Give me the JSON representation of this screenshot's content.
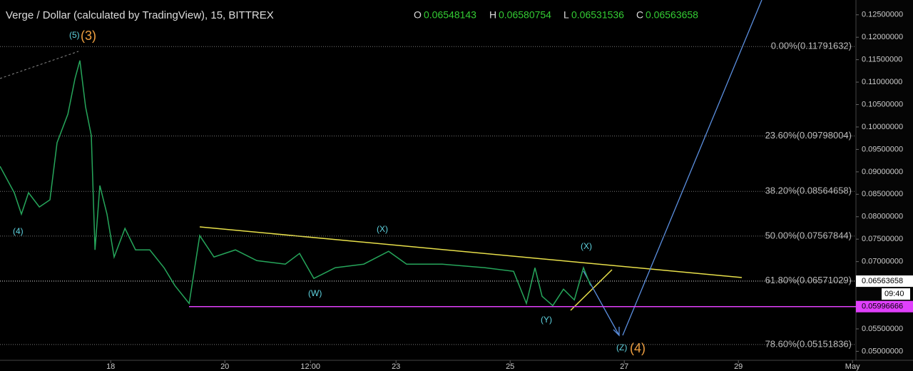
{
  "header": {
    "title": "Verge / Dollar (calculated by TradingView), 15, BITTREX",
    "ohlc": [
      {
        "key": "O",
        "value": "0.06548143"
      },
      {
        "key": "H",
        "value": "0.06580754"
      },
      {
        "key": "L",
        "value": "0.06531536"
      },
      {
        "key": "C",
        "value": "0.06563658"
      }
    ]
  },
  "chart_data": {
    "type": "line",
    "color": "#26a65b",
    "x": [
      16.06,
      16.31,
      16.435,
      16.56,
      16.75,
      16.935,
      17.06,
      17.25,
      17.375,
      17.46,
      17.56,
      17.66,
      17.725,
      17.81,
      17.935,
      18.06,
      18.25,
      18.435,
      18.685,
      18.935,
      19.125,
      19.375,
      19.56,
      19.81,
      20.185,
      20.56,
      21.06,
      21.31,
      21.56,
      21.935,
      22.435,
      22.87,
      23.185,
      23.81,
      24.56,
      25.06,
      25.285,
      25.435,
      25.56,
      25.747,
      25.935,
      26.125,
      26.285,
      26.41
    ],
    "values": [
      0.09124,
      0.08535,
      0.08057,
      0.08535,
      0.08217,
      0.08376,
      0.0965,
      0.10287,
      0.11083,
      0.11481,
      0.10446,
      0.09809,
      0.07261,
      0.08694,
      0.08057,
      0.07102,
      0.07739,
      0.07261,
      0.07261,
      0.06863,
      0.06465,
      0.06067,
      0.0758,
      0.07102,
      0.07261,
      0.07022,
      0.06943,
      0.07182,
      0.06624,
      0.06863,
      0.06943,
      0.07229,
      0.06943,
      0.06943,
      0.06863,
      0.06783,
      0.06067,
      0.06863,
      0.06226,
      0.06019,
      0.06385,
      0.06146,
      0.06863,
      0.06465
    ],
    "xlim": [
      16.06,
      31.06
    ],
    "xticks": [
      18,
      20,
      {
        "value": 21.5,
        "label": "12:00"
      },
      23,
      25,
      27,
      29,
      {
        "value": 31,
        "label": "May"
      }
    ],
    "ylim": [
      0.048,
      0.1283
    ],
    "yticks": [
      {
        "value": 0.125,
        "label": "0.12500000"
      },
      {
        "value": 0.12,
        "label": "0.12000000"
      },
      {
        "value": 0.115,
        "label": "0.11500000"
      },
      {
        "value": 0.11,
        "label": "0.11000000"
      },
      {
        "value": 0.105,
        "label": "0.10500000"
      },
      {
        "value": 0.1,
        "label": "0.10000000"
      },
      {
        "value": 0.095,
        "label": "0.09500000"
      },
      {
        "value": 0.09,
        "label": "0.09000000"
      },
      {
        "value": 0.085,
        "label": "0.08500000"
      },
      {
        "value": 0.08,
        "label": "0.08000000"
      },
      {
        "value": 0.075,
        "label": "0.07500000"
      },
      {
        "value": 0.07,
        "label": "0.07000000"
      },
      {
        "value": 0.065,
        "label": "0.06500000"
      },
      {
        "value": 0.06,
        "label": "0.06000000"
      },
      {
        "value": 0.055,
        "label": "0.05500000"
      },
      {
        "value": 0.05,
        "label": "0.05000000"
      }
    ],
    "fib_levels": [
      {
        "value": 0.11791632,
        "label": "0.00%(0.11791632)"
      },
      {
        "value": 0.09798004,
        "label": "23.60%(0.09798004)"
      },
      {
        "value": 0.08564658,
        "label": "38.20%(0.08564658)"
      },
      {
        "value": 0.07567844,
        "label": "50.00%(0.07567844)"
      },
      {
        "value": 0.06571029,
        "label": "61.80%(0.06571029)"
      },
      {
        "value": 0.05151836,
        "label": "78.60%(0.05151836)"
      }
    ],
    "horizontal_line": {
      "value": 0.05996666,
      "label": "0.05996666",
      "color": "#e040fb"
    },
    "last_price": {
      "value": 0.06563658,
      "label": "0.06563658",
      "countdown": "09:40"
    }
  },
  "annotations": [
    "(5)",
    "(3)",
    "(4)",
    "(X)",
    "(W)",
    "(X)",
    "(Y)",
    "(Z)",
    "(4)"
  ]
}
